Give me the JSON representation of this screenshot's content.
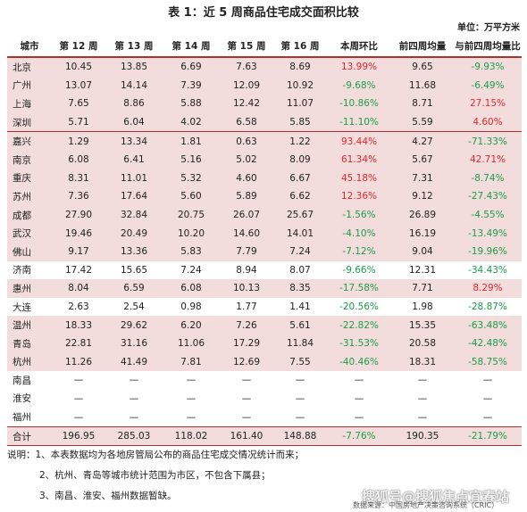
{
  "title": "表 1：近 5 周商品住宅成交面积比较",
  "unit": "单位：万平方米",
  "headers": [
    "城市",
    "第 12 周",
    "第 13 周",
    "第 14 周",
    "第 15 周",
    "第 16 周",
    "本周环比",
    "前四周均量",
    "与前四周均量比"
  ],
  "rows": [
    [
      "北京",
      "10.45",
      "13.85",
      "6.69",
      "7.63",
      "8.69",
      "13.99%",
      "9.65",
      "-9.93%"
    ],
    [
      "广州",
      "13.07",
      "14.14",
      "7.39",
      "12.09",
      "10.92",
      "-9.68%",
      "11.68",
      "-6.49%"
    ],
    [
      "上海",
      "7.65",
      "8.86",
      "5.88",
      "12.42",
      "11.07",
      "-10.86%",
      "8.71",
      "27.15%"
    ],
    [
      "深圳",
      "5.71",
      "6.04",
      "4.02",
      "6.58",
      "5.85",
      "-11.10%",
      "5.59",
      "4.60%"
    ],
    [
      "嘉兴",
      "1.29",
      "13.34",
      "1.81",
      "0.63",
      "1.22",
      "93.44%",
      "4.27",
      "-71.33%"
    ],
    [
      "南京",
      "6.08",
      "6.41",
      "5.16",
      "5.02",
      "8.09",
      "61.34%",
      "5.67",
      "42.71%"
    ],
    [
      "重庆",
      "8.31",
      "11.01",
      "5.32",
      "4.60",
      "6.67",
      "45.18%",
      "7.31",
      "-8.74%"
    ],
    [
      "苏州",
      "7.36",
      "17.64",
      "5.60",
      "5.89",
      "6.62",
      "12.36%",
      "9.12",
      "-27.43%"
    ],
    [
      "成都",
      "27.90",
      "32.84",
      "20.75",
      "26.07",
      "25.67",
      "-1.56%",
      "26.89",
      "-4.55%"
    ],
    [
      "武汉",
      "19.46",
      "20.49",
      "10.20",
      "14.60",
      "14.01",
      "-4.10%",
      "16.19",
      "-13.49%"
    ],
    [
      "佛山",
      "9.17",
      "13.36",
      "5.83",
      "7.79",
      "7.24",
      "-7.12%",
      "9.04",
      "-19.96%"
    ],
    [
      "济南",
      "17.42",
      "15.65",
      "7.24",
      "8.94",
      "8.07",
      "-9.66%",
      "12.31",
      "-34.43%"
    ],
    [
      "惠州",
      "8.04",
      "6.59",
      "6.08",
      "10.13",
      "8.35",
      "-17.58%",
      "7.71",
      "8.29%"
    ],
    [
      "大连",
      "2.63",
      "2.54",
      "0.98",
      "1.77",
      "1.41",
      "-20.56%",
      "1.98",
      "-28.87%"
    ],
    [
      "温州",
      "18.33",
      "29.62",
      "6.20",
      "7.26",
      "5.61",
      "-22.82%",
      "15.35",
      "-63.48%"
    ],
    [
      "青岛",
      "22.81",
      "31.16",
      "11.06",
      "17.29",
      "11.84",
      "-31.53%",
      "20.58",
      "-42.48%"
    ],
    [
      "杭州",
      "11.26",
      "41.49",
      "7.81",
      "12.69",
      "7.55",
      "-40.46%",
      "18.31",
      "-58.75%"
    ],
    [
      "南昌",
      "—",
      "—",
      "—",
      "—",
      "—",
      "—",
      "—",
      "—"
    ],
    [
      "淮安",
      "—",
      "—",
      "—",
      "—",
      "—",
      "—",
      "—",
      "—"
    ],
    [
      "福州",
      "—",
      "—",
      "—",
      "—",
      "—",
      "—",
      "—",
      "—"
    ]
  ],
  "total": [
    "合计",
    "196.95",
    "285.03",
    "118.02",
    "161.40",
    "148.88",
    "-7.76%",
    "190.35",
    "-21.79%"
  ],
  "notes": [
    "说明：1、本表数据均为各地房管局公布的商品住宅成交情况统计而来；",
    "2、杭州、青岛等城市统计范围为市区，不包含下属县；",
    "3、南昌、淮安、福州数据暂缺。"
  ],
  "watermark": "搜狐号@搜狐焦点宜春站",
  "source": "数据来源：中国房地产决策咨询系统（CRIC）",
  "colors": {
    "accent": "#b03030",
    "row_highlight": "#f2dcdc",
    "positive": "#e8262c",
    "negative": "#1a9e4a"
  }
}
